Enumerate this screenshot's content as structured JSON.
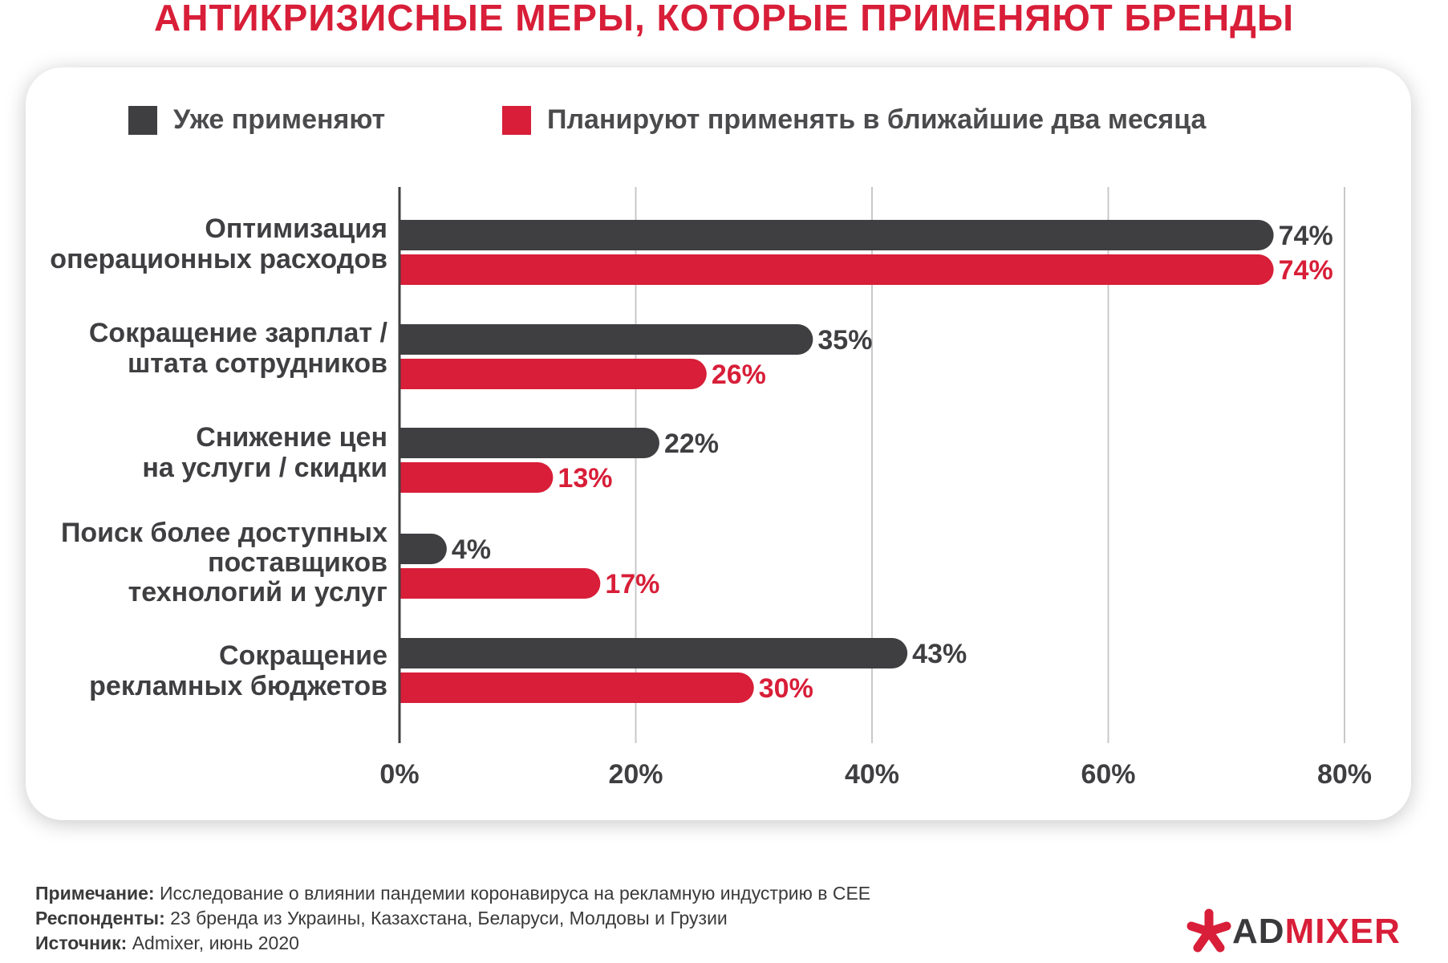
{
  "title": "АНТИКРИЗИСНЫЕ МЕРЫ, КОТОРЫЕ ПРИМЕНЯЮТ БРЕНДЫ",
  "colors": {
    "accent": "#d81e38",
    "dark_series": "#3f3f42",
    "grid": "#c8c8c8"
  },
  "legend": [
    {
      "label": "Уже применяют",
      "color": "#3f3f42"
    },
    {
      "label": "Планируют применять в ближайшие два месяца",
      "color": "#d81e38"
    }
  ],
  "categories": [
    [
      "Оптимизация",
      "операционных расходов"
    ],
    [
      "Сокращение зарплат /",
      "штата сотрудников"
    ],
    [
      "Снижение цен",
      "на услуги / скидки"
    ],
    [
      "Поиск более доступных",
      "поставщиков",
      "технологий и услуг"
    ],
    [
      "Сокращение",
      "рекламных бюджетов"
    ]
  ],
  "chart_data": {
    "type": "bar",
    "orientation": "horizontal",
    "categories": [
      "Оптимизация операционных расходов",
      "Сокращение зарплат / штата сотрудников",
      "Снижение цен на услуги / скидки",
      "Поиск более доступных поставщиков технологий и услуг",
      "Сокращение рекламных бюджетов"
    ],
    "series": [
      {
        "name": "Уже применяют",
        "values": [
          74,
          35,
          22,
          4,
          43
        ],
        "labels": [
          "74%",
          "35%",
          "22%",
          "4%",
          "43%"
        ]
      },
      {
        "name": "Планируют применять в ближайшие два месяца",
        "values": [
          74,
          26,
          13,
          17,
          30
        ],
        "labels": [
          "74%",
          "26%",
          "13%",
          "17%",
          "30%"
        ]
      }
    ],
    "xlim": [
      0,
      80
    ],
    "x_ticks": [
      0,
      20,
      40,
      60,
      80
    ],
    "x_tick_labels": [
      "0%",
      "20%",
      "40%",
      "60%",
      "80%"
    ],
    "grid": true,
    "legend_position": "top"
  },
  "notes": [
    {
      "label": "Примечание:",
      "text": " Исследование о влиянии пандемии коронавируса на рекламную индустрию в CEE"
    },
    {
      "label": "Респонденты:",
      "text": " 23 бренда из Украины, Казахстана, Беларуси, Молдовы и Грузии"
    },
    {
      "label": "Источник:",
      "text": " Admixer, июнь 2020"
    }
  ],
  "logo": {
    "icon": "asterisk-icon",
    "text_dark": "AD",
    "text_red": "MIXER"
  }
}
